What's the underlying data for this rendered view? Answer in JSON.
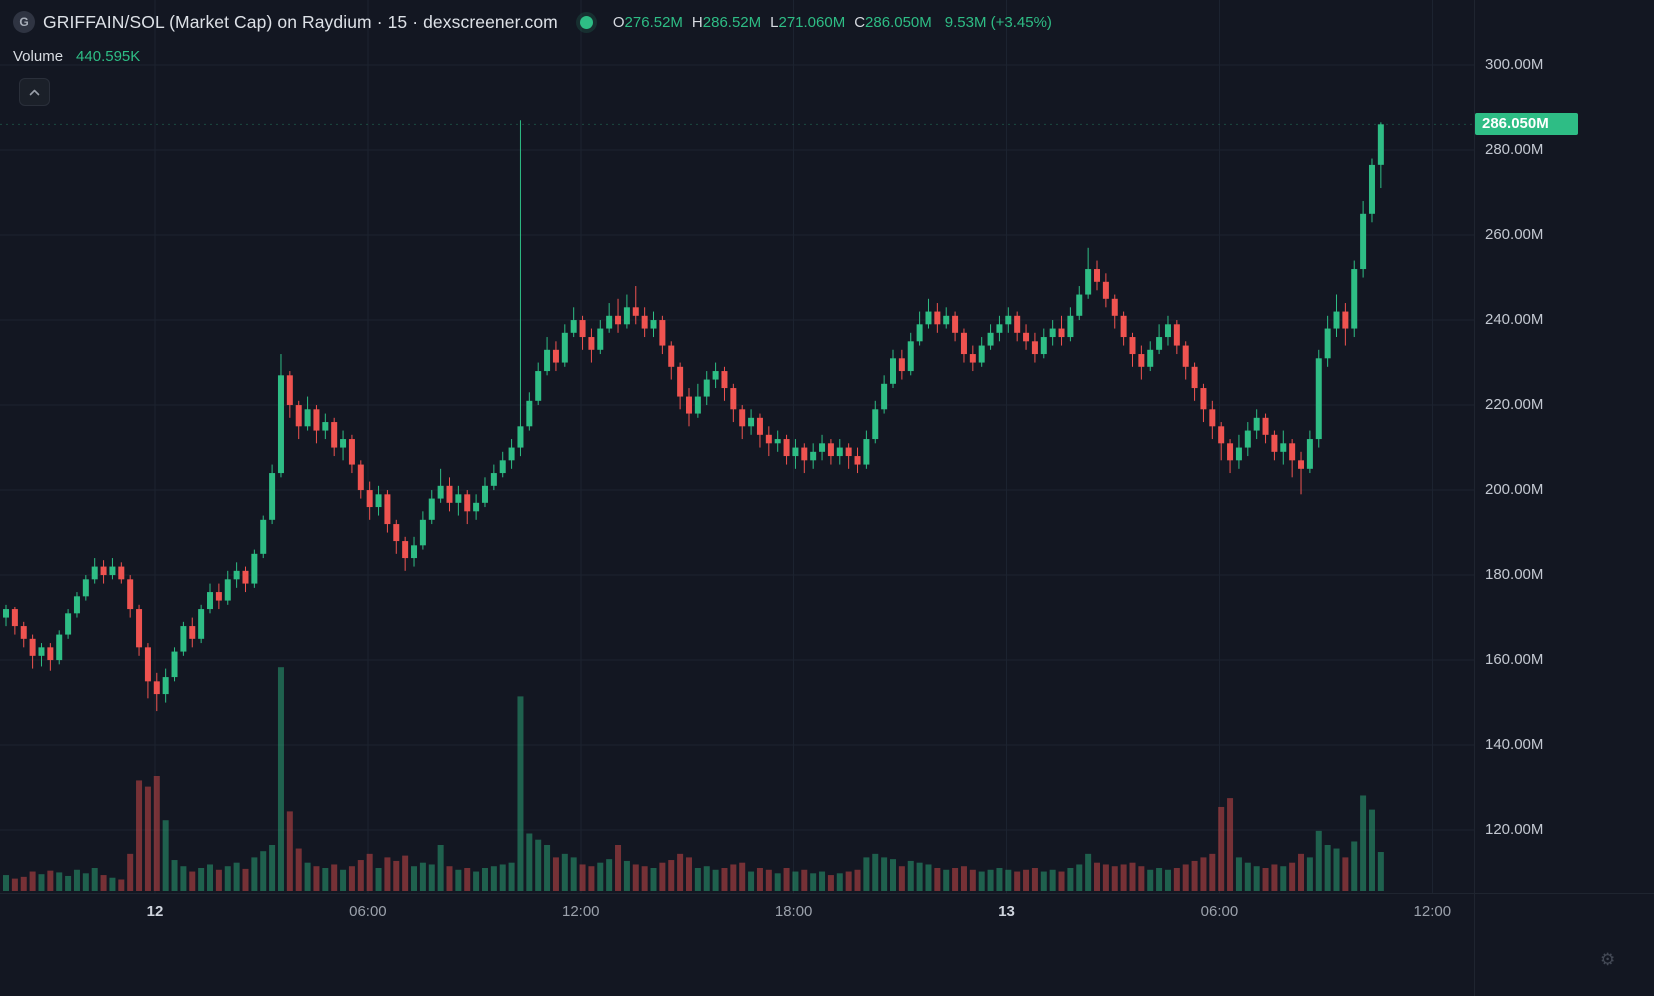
{
  "colors": {
    "background": "#131722",
    "up": "#2ebd85",
    "down": "#ef5350",
    "up_dim": "rgba(46,189,133,0.45)",
    "down_dim": "rgba(239,83,80,0.45)",
    "grid": "#1c2330",
    "axis_text": "#c3c8d1",
    "title_text": "#dde1e7",
    "badge_bg": "#2ebd85",
    "badge_text": "#ffffff"
  },
  "header": {
    "logo_letter": "G",
    "title": "GRIFFAIN/SOL (Market Cap) on Raydium · 15 · dexscreener.com",
    "ohlc": {
      "o_label": "O",
      "o_value": "276.52M",
      "h_label": "H",
      "h_value": "286.52M",
      "l_label": "L",
      "l_value": "271.060M",
      "c_label": "C",
      "c_value": "286.050M",
      "change_value": "9.53M (+3.45%)"
    },
    "volume_label": "Volume",
    "volume_value": "440.595K"
  },
  "price_scale": {
    "unit": "M",
    "last_price_label": "286.050M",
    "last_price_value": 286.05,
    "ticks": [
      {
        "label": "300.00M",
        "value": 300
      },
      {
        "label": "280.00M",
        "value": 280
      },
      {
        "label": "260.00M",
        "value": 260
      },
      {
        "label": "240.00M",
        "value": 240
      },
      {
        "label": "220.00M",
        "value": 220
      },
      {
        "label": "200.00M",
        "value": 200
      },
      {
        "label": "180.00M",
        "value": 180
      },
      {
        "label": "160.00M",
        "value": 160
      },
      {
        "label": "140.00M",
        "value": 140
      },
      {
        "label": "120.00M",
        "value": 120
      }
    ]
  },
  "time_scale": {
    "ticks": [
      {
        "label": "12",
        "index": 16.8,
        "major": true
      },
      {
        "label": "06:00",
        "index": 40.8,
        "major": false
      },
      {
        "label": "12:00",
        "index": 64.8,
        "major": false
      },
      {
        "label": "18:00",
        "index": 88.8,
        "major": false
      },
      {
        "label": "13",
        "index": 112.8,
        "major": true
      },
      {
        "label": "06:00",
        "index": 136.8,
        "major": false
      },
      {
        "label": "12:00",
        "index": 160.8,
        "major": false
      }
    ]
  },
  "chart_data": {
    "type": "candlestick",
    "symbol": "GRIFFAIN/SOL",
    "interval": "15",
    "title": "GRIFFAIN/SOL (Market Cap) on Raydium · 15 · dexscreener.com",
    "unit": "M",
    "volume_unit": "K",
    "ylim": [
      105.2,
      315.3
    ],
    "last_close": 286.05,
    "candles": [
      [
        170,
        173,
        168,
        172,
        180
      ],
      [
        172,
        172.5,
        166,
        168,
        140
      ],
      [
        168,
        169,
        163,
        165,
        160
      ],
      [
        165,
        166,
        158,
        161,
        220
      ],
      [
        161,
        164,
        158.5,
        163,
        190
      ],
      [
        163,
        164,
        157.5,
        160,
        230
      ],
      [
        160,
        167,
        159,
        166,
        210
      ],
      [
        166,
        172,
        165,
        171,
        170
      ],
      [
        171,
        176,
        170,
        175,
        240
      ],
      [
        175,
        180,
        174,
        179,
        200
      ],
      [
        179,
        184,
        178,
        182,
        260
      ],
      [
        182,
        183.5,
        178,
        180,
        180
      ],
      [
        180,
        184,
        179,
        182,
        150
      ],
      [
        182,
        183,
        178,
        179,
        130
      ],
      [
        179,
        180,
        170,
        172,
        420
      ],
      [
        172,
        173,
        161,
        163,
        1250
      ],
      [
        163,
        164,
        151,
        155,
        1180
      ],
      [
        155,
        157,
        148,
        152,
        1300
      ],
      [
        152,
        158,
        150,
        156,
        800
      ],
      [
        156,
        163,
        155,
        162,
        350
      ],
      [
        162,
        169,
        161,
        168,
        280
      ],
      [
        168,
        170,
        163,
        165,
        220
      ],
      [
        165,
        173,
        164,
        172,
        260
      ],
      [
        172,
        178,
        171,
        176,
        300
      ],
      [
        176,
        178,
        172,
        174,
        240
      ],
      [
        174,
        181,
        173,
        179,
        280
      ],
      [
        179,
        183,
        177,
        181,
        320
      ],
      [
        181,
        182,
        176,
        178,
        250
      ],
      [
        178,
        186,
        177,
        185,
        380
      ],
      [
        185,
        194,
        184,
        193,
        450
      ],
      [
        193,
        206,
        192,
        204,
        520
      ],
      [
        204,
        232,
        203,
        227,
        2530
      ],
      [
        227,
        228,
        217,
        220,
        900
      ],
      [
        220,
        221,
        212,
        215,
        480
      ],
      [
        215,
        222,
        214,
        219,
        320
      ],
      [
        219,
        220,
        211,
        214,
        280
      ],
      [
        214,
        218,
        212,
        216,
        260
      ],
      [
        216,
        217,
        208,
        210,
        300
      ],
      [
        210,
        214,
        207,
        212,
        240
      ],
      [
        212,
        213,
        204,
        206,
        280
      ],
      [
        206,
        207,
        198,
        200,
        350
      ],
      [
        200,
        202,
        193,
        196,
        420
      ],
      [
        196,
        201,
        194,
        199,
        260
      ],
      [
        199,
        200,
        190,
        192,
        380
      ],
      [
        192,
        193,
        185,
        188,
        340
      ],
      [
        188,
        189,
        181,
        184,
        400
      ],
      [
        184,
        189,
        182,
        187,
        280
      ],
      [
        187,
        195,
        186,
        193,
        320
      ],
      [
        193,
        200,
        192,
        198,
        300
      ],
      [
        198,
        205,
        197,
        201,
        520
      ],
      [
        201,
        203,
        195,
        197,
        280
      ],
      [
        197,
        201,
        194,
        199,
        240
      ],
      [
        199,
        200,
        192,
        195,
        260
      ],
      [
        195,
        199,
        193,
        197,
        220
      ],
      [
        197,
        203,
        196,
        201,
        260
      ],
      [
        201,
        206,
        200,
        204,
        280
      ],
      [
        204,
        209,
        203,
        207,
        300
      ],
      [
        207,
        212,
        205,
        210,
        320
      ],
      [
        210,
        287,
        208,
        215,
        2200
      ],
      [
        215,
        223,
        214,
        221,
        650
      ],
      [
        221,
        230,
        220,
        228,
        580
      ],
      [
        228,
        236,
        227,
        233,
        520
      ],
      [
        233,
        235,
        228,
        230,
        380
      ],
      [
        230,
        239,
        229,
        237,
        420
      ],
      [
        237,
        243,
        236,
        240,
        380
      ],
      [
        240,
        241,
        233,
        236,
        300
      ],
      [
        236,
        238,
        230,
        233,
        280
      ],
      [
        233,
        240,
        232,
        238,
        320
      ],
      [
        238,
        244,
        237,
        241,
        360
      ],
      [
        241,
        245,
        237,
        239,
        520
      ],
      [
        239,
        246,
        238,
        243,
        340
      ],
      [
        243,
        248,
        239,
        241,
        300
      ],
      [
        241,
        243,
        236,
        238,
        280
      ],
      [
        238,
        242,
        236,
        240,
        260
      ],
      [
        240,
        241,
        232,
        234,
        320
      ],
      [
        234,
        235,
        226,
        229,
        350
      ],
      [
        229,
        230,
        219,
        222,
        420
      ],
      [
        222,
        224,
        215,
        218,
        380
      ],
      [
        218,
        225,
        217,
        222,
        260
      ],
      [
        222,
        228,
        220,
        226,
        280
      ],
      [
        226,
        230,
        224,
        228,
        240
      ],
      [
        228,
        229,
        221,
        224,
        260
      ],
      [
        224,
        225,
        216,
        219,
        300
      ],
      [
        219,
        220,
        212,
        215,
        320
      ],
      [
        215,
        219,
        213,
        217,
        220
      ],
      [
        217,
        218,
        210,
        213,
        260
      ],
      [
        213,
        215,
        208,
        211,
        240
      ],
      [
        211,
        214,
        209,
        212,
        200
      ],
      [
        212,
        213,
        206,
        208,
        260
      ],
      [
        208,
        212,
        205,
        210,
        220
      ],
      [
        210,
        211,
        204,
        207,
        240
      ],
      [
        207,
        211,
        205,
        209,
        200
      ],
      [
        209,
        213,
        207,
        211,
        220
      ],
      [
        211,
        212,
        206,
        208,
        180
      ],
      [
        208,
        212,
        206,
        210,
        200
      ],
      [
        210,
        211,
        205,
        208,
        220
      ],
      [
        208,
        210,
        204,
        206,
        240
      ],
      [
        206,
        214,
        205,
        212,
        380
      ],
      [
        212,
        221,
        211,
        219,
        420
      ],
      [
        219,
        227,
        218,
        225,
        380
      ],
      [
        225,
        233,
        224,
        231,
        360
      ],
      [
        231,
        233,
        226,
        228,
        280
      ],
      [
        228,
        237,
        227,
        235,
        340
      ],
      [
        235,
        242,
        234,
        239,
        320
      ],
      [
        239,
        245,
        238,
        242,
        300
      ],
      [
        242,
        244,
        237,
        239,
        260
      ],
      [
        239,
        243,
        238,
        241,
        240
      ],
      [
        241,
        242,
        235,
        237,
        260
      ],
      [
        237,
        238,
        230,
        232,
        280
      ],
      [
        232,
        234,
        228,
        230,
        240
      ],
      [
        230,
        236,
        229,
        234,
        220
      ],
      [
        234,
        239,
        233,
        237,
        240
      ],
      [
        237,
        241,
        235,
        239,
        260
      ],
      [
        239,
        243,
        237,
        241,
        240
      ],
      [
        241,
        242,
        235,
        237,
        220
      ],
      [
        237,
        239,
        233,
        235,
        240
      ],
      [
        235,
        237,
        230,
        232,
        260
      ],
      [
        232,
        238,
        231,
        236,
        220
      ],
      [
        236,
        240,
        234,
        238,
        240
      ],
      [
        238,
        241,
        234,
        236,
        220
      ],
      [
        236,
        243,
        235,
        241,
        260
      ],
      [
        241,
        248,
        240,
        246,
        300
      ],
      [
        246,
        257,
        245,
        252,
        420
      ],
      [
        252,
        254,
        247,
        249,
        320
      ],
      [
        249,
        251,
        243,
        245,
        300
      ],
      [
        245,
        246,
        238,
        241,
        280
      ],
      [
        241,
        242,
        234,
        236,
        300
      ],
      [
        236,
        237,
        229,
        232,
        320
      ],
      [
        232,
        234,
        226,
        229,
        280
      ],
      [
        229,
        235,
        228,
        233,
        240
      ],
      [
        233,
        239,
        232,
        236,
        260
      ],
      [
        236,
        241,
        234,
        239,
        240
      ],
      [
        239,
        240,
        232,
        234,
        260
      ],
      [
        234,
        235,
        226,
        229,
        300
      ],
      [
        229,
        230,
        221,
        224,
        340
      ],
      [
        224,
        225,
        216,
        219,
        380
      ],
      [
        219,
        221,
        212,
        215,
        420
      ],
      [
        215,
        216,
        207,
        211,
        950
      ],
      [
        211,
        212,
        204,
        207,
        1050
      ],
      [
        207,
        213,
        205,
        210,
        380
      ],
      [
        210,
        216,
        208,
        214,
        320
      ],
      [
        214,
        219,
        212,
        217,
        280
      ],
      [
        217,
        218,
        211,
        213,
        260
      ],
      [
        213,
        214,
        207,
        209,
        300
      ],
      [
        209,
        214,
        206,
        211,
        280
      ],
      [
        211,
        212,
        203,
        207,
        320
      ],
      [
        207,
        209,
        199,
        205,
        420
      ],
      [
        205,
        214,
        204,
        212,
        380
      ],
      [
        212,
        233,
        210,
        231,
        680
      ],
      [
        231,
        241,
        229,
        238,
        520
      ],
      [
        238,
        246,
        236,
        242,
        480
      ],
      [
        242,
        244,
        234,
        238,
        380
      ],
      [
        238,
        254,
        236,
        252,
        560
      ],
      [
        252,
        268,
        250,
        265,
        1080
      ],
      [
        265,
        278,
        263,
        276.5,
        920
      ],
      [
        276.52,
        286.52,
        271.06,
        286.05,
        440.595
      ]
    ]
  }
}
